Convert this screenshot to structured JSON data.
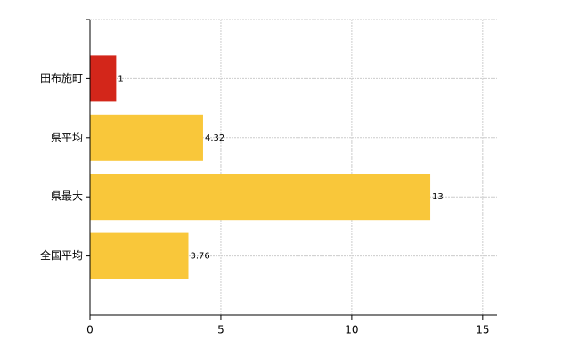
{
  "chart_data": {
    "type": "barh",
    "categories": [
      "田布施町",
      "県平均",
      "県最大",
      "全国平均"
    ],
    "values": [
      1,
      4.32,
      13,
      3.76
    ],
    "colors": [
      "#d3261a",
      "#f9c73a",
      "#f9c73a",
      "#f9c73a"
    ],
    "xlim": [
      0,
      15.55
    ],
    "xticks": [
      0,
      5,
      10,
      15
    ],
    "grid": true
  }
}
